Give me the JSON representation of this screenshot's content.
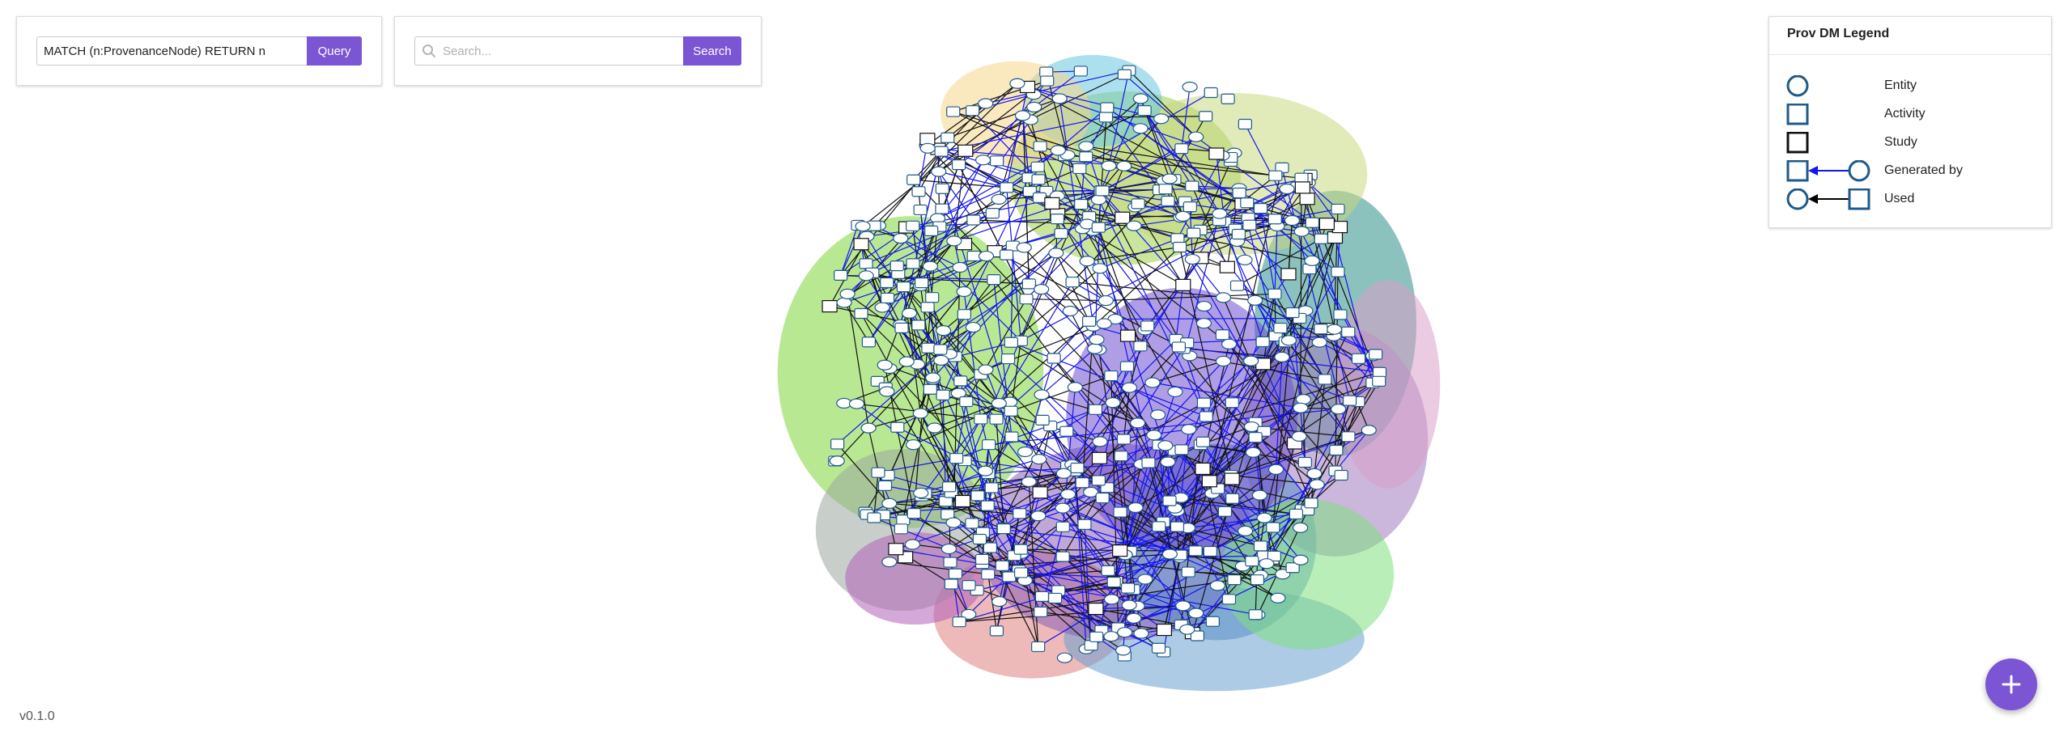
{
  "query": {
    "value": "MATCH (n:ProvenanceNode) RETURN n",
    "button_label": "Query"
  },
  "search": {
    "placeholder": "Search...",
    "button_label": "Search"
  },
  "legend": {
    "title": "Prov DM Legend",
    "items": [
      {
        "label": "Entity",
        "icon": "circle-icon"
      },
      {
        "label": "Activity",
        "icon": "square-icon"
      },
      {
        "label": "Study",
        "icon": "bold-square-icon"
      },
      {
        "label": "Generated by",
        "icon": "generated-by-icon"
      },
      {
        "label": "Used",
        "icon": "used-icon"
      }
    ]
  },
  "version": "v0.1.0",
  "colors": {
    "accent": "#7b55d3",
    "node_stroke": "#1e5a8a",
    "generated_edge": "#1414ee",
    "used_edge": "#000000"
  }
}
